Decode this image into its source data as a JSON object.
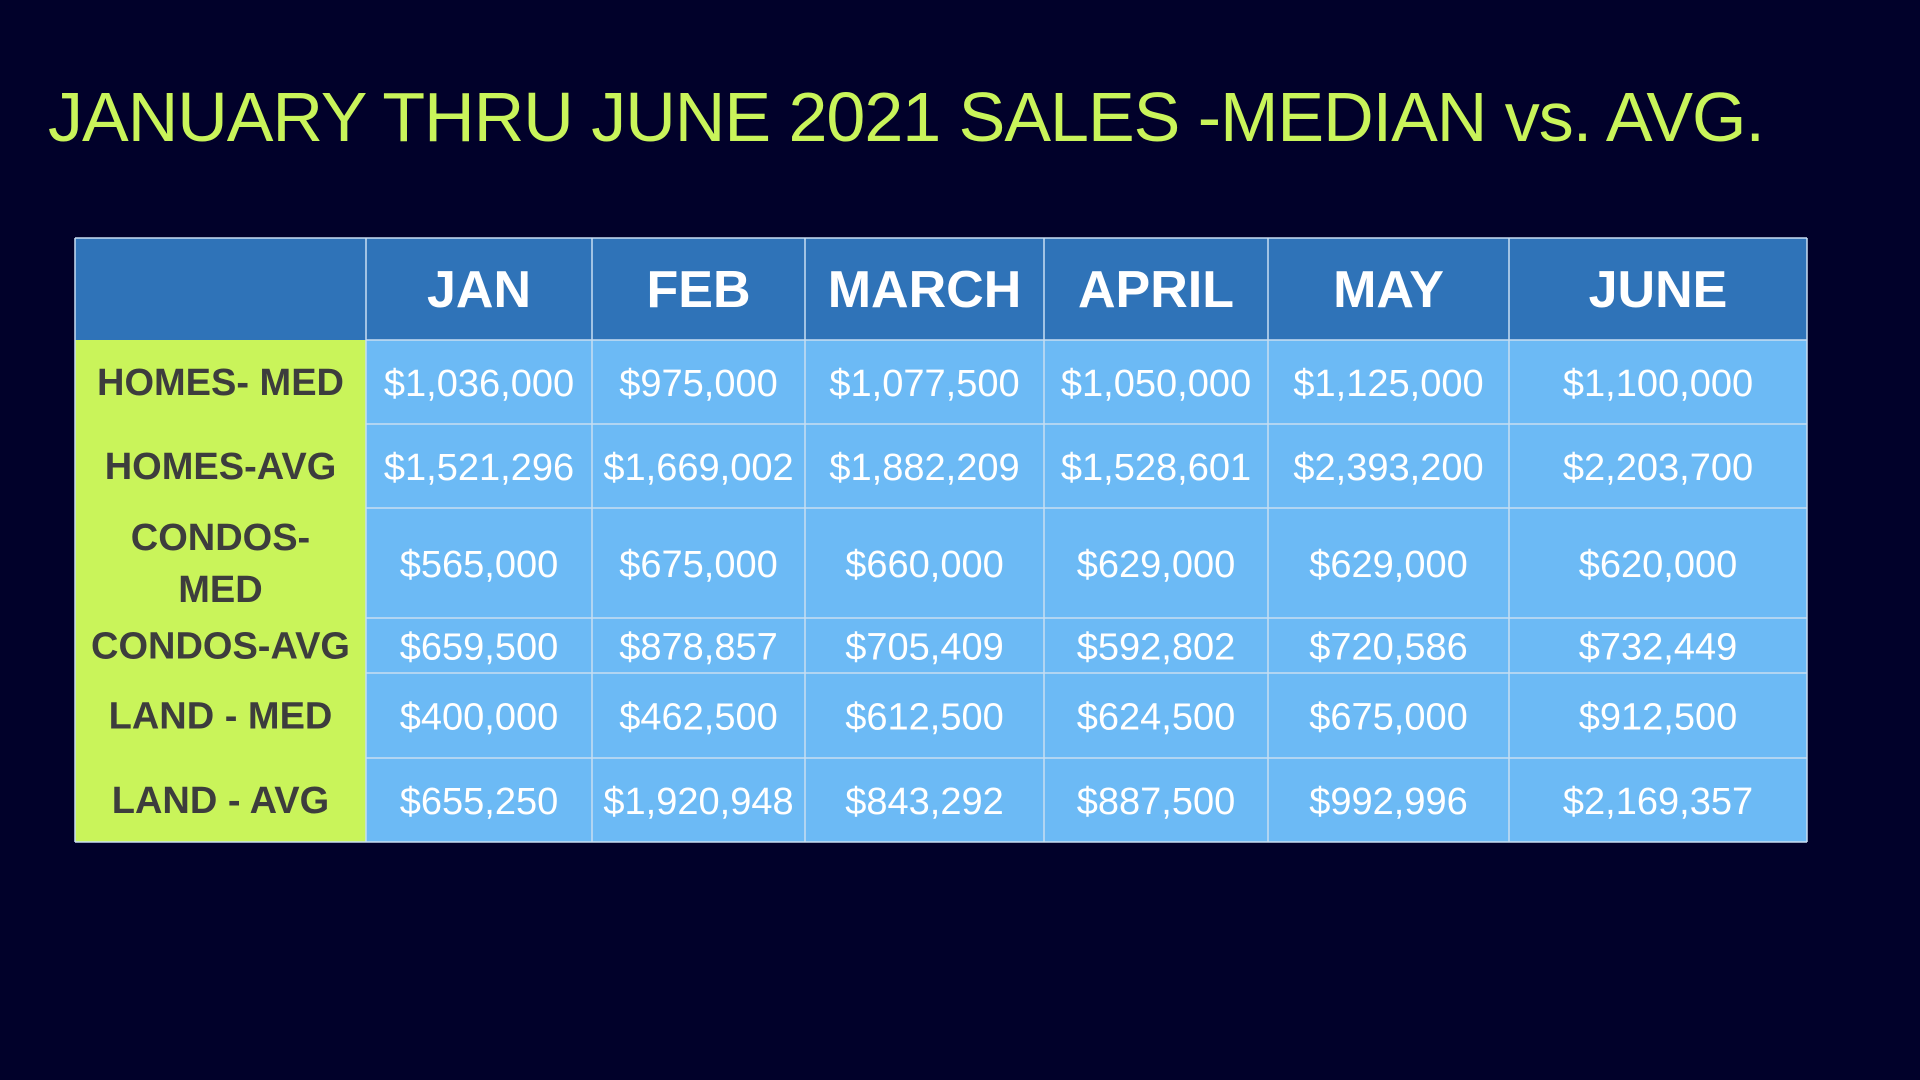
{
  "title": "JANUARY THRU JUNE 2021 SALES -MEDIAN vs. AVG.",
  "colors": {
    "background": "#01012a",
    "title": "#c9f45a",
    "header_fill": "#2f73b8",
    "row_label_fill": "#c9f45a",
    "cell_fill": "#6cbaf5",
    "grid_line": "#c8def2"
  },
  "chart_data": {
    "type": "table",
    "title": "JANUARY THRU JUNE 2021 SALES -MEDIAN vs. AVG.",
    "columns": [
      "JAN",
      "FEB",
      "MARCH",
      "APRIL",
      "MAY",
      "JUNE"
    ],
    "rows": [
      {
        "label": [
          "HOMES- MED"
        ],
        "values": [
          "$1,036,000",
          "$975,000",
          "$1,077,500",
          "$1,050,000",
          "$1,125,000",
          "$1,100,000"
        ]
      },
      {
        "label": [
          "HOMES-AVG"
        ],
        "values": [
          "$1,521,296",
          "$1,669,002",
          "$1,882,209",
          "$1,528,601",
          "$2,393,200",
          "$2,203,700"
        ]
      },
      {
        "label": [
          "CONDOS-",
          "MED"
        ],
        "values": [
          "$565,000",
          "$675,000",
          "$660,000",
          "$629,000",
          "$629,000",
          "$620,000"
        ]
      },
      {
        "label": [
          "CONDOS-AVG"
        ],
        "values": [
          "$659,500",
          "$878,857",
          "$705,409",
          "$592,802",
          "$720,586",
          "$732,449"
        ]
      },
      {
        "label": [
          "LAND - MED"
        ],
        "values": [
          "$400,000",
          "$462,500",
          "$612,500",
          "$624,500",
          "$675,000",
          "$912,500"
        ]
      },
      {
        "label": [
          "LAND - AVG"
        ],
        "values": [
          "$655,250",
          "$1,920,948",
          "$843,292",
          "$887,500",
          "$992,996",
          "$2,169,357"
        ]
      }
    ]
  }
}
